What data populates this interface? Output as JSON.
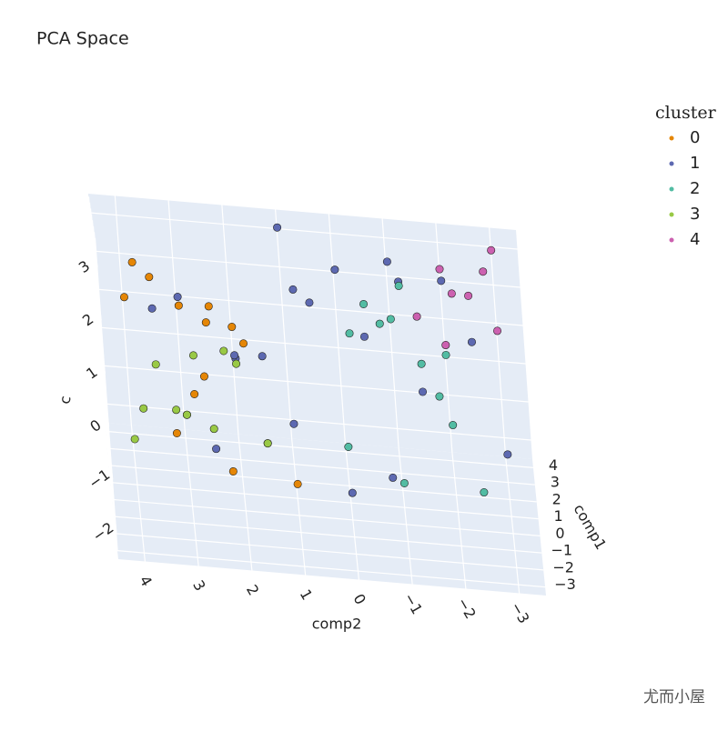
{
  "chart_data": {
    "type": "scatter3d",
    "title": "PCA Space",
    "legend_title": "cluster",
    "x_label": "comp1",
    "y_label": "comp2",
    "z_label": "c",
    "xlim": [
      -3.5,
      4.5
    ],
    "ylim": [
      -3.5,
      4.5
    ],
    "zlim": [
      -2.5,
      3.5
    ],
    "xticks": [
      {
        "value": -3,
        "label": "−3"
      },
      {
        "value": -2,
        "label": "−2"
      },
      {
        "value": -1,
        "label": "−1"
      },
      0,
      1,
      2,
      3,
      4
    ],
    "yticks": [
      {
        "value": -3,
        "label": "−3"
      },
      {
        "value": -2,
        "label": "−2"
      },
      {
        "value": -1,
        "label": "−1"
      },
      0,
      1,
      2,
      3,
      4
    ],
    "zticks": [
      {
        "value": -2,
        "label": "−2"
      },
      {
        "value": -1,
        "label": "−1"
      },
      0,
      1,
      2,
      3
    ],
    "grid": true,
    "series": [
      {
        "name": "0",
        "color": "#e58606",
        "x": [
          -1,
          0,
          1,
          2,
          -2,
          0.5,
          1.5,
          -0.5,
          2.5,
          -1.5,
          0,
          1,
          3,
          -1,
          0.5
        ],
        "y": [
          3,
          2.5,
          3.5,
          2,
          3,
          4,
          2.8,
          3.2,
          1.8,
          2.2,
          1.5,
          3.8,
          2.4,
          1,
          2.6
        ],
        "z": [
          2,
          1.5,
          2.2,
          1,
          0,
          1.8,
          -0.5,
          -0.8,
          0.5,
          -1.2,
          -1,
          2.5,
          1.2,
          -1.5,
          0.2
        ]
      },
      {
        "name": "1",
        "color": "#5d69b1",
        "x": [
          -3,
          -2,
          -1,
          0,
          1,
          2,
          3,
          4,
          -2.5,
          -1.5,
          0.5,
          1.5,
          2.5,
          3.5,
          -0.5,
          0,
          1,
          2,
          -1,
          3
        ],
        "y": [
          0,
          1,
          2,
          3,
          -1,
          -2,
          0.5,
          -0.5,
          2.5,
          1.5,
          0,
          -1.5,
          -2.5,
          1,
          3.5,
          -3,
          2,
          0.8,
          -0.8,
          -1.2
        ],
        "z": [
          -1,
          0,
          1,
          2,
          3,
          2.5,
          1.5,
          0.5,
          -0.5,
          1.2,
          2.8,
          0,
          1,
          3.2,
          1.8,
          -0.8,
          0.6,
          2,
          -1.2,
          2.2
        ]
      },
      {
        "name": "2",
        "color": "#52bca3",
        "x": [
          -2,
          -1,
          0,
          1,
          2,
          3,
          -1.5,
          0.5,
          1.5,
          2.5,
          -0.5,
          3.5
        ],
        "y": [
          -1,
          -2,
          -1.5,
          -0.5,
          -1,
          -2,
          0,
          -1.8,
          -0.2,
          -1.2,
          -2.5,
          -0.8
        ],
        "z": [
          -1,
          0,
          1,
          2,
          1.5,
          0.5,
          -0.5,
          0.2,
          1.2,
          2.2,
          -1.5,
          1
        ]
      },
      {
        "name": "3",
        "color": "#99c945",
        "x": [
          -2,
          -1,
          0,
          -1.5,
          -0.5,
          -2.5,
          0.5,
          -1,
          -2,
          0
        ],
        "y": [
          3,
          2.5,
          3.5,
          2,
          4,
          3.2,
          2.2,
          3.8,
          2.8,
          1.5
        ],
        "z": [
          0,
          -0.5,
          0.5,
          1,
          -1,
          0.2,
          0.8,
          -0.2,
          1.2,
          -1
        ]
      },
      {
        "name": "4",
        "color": "#cc61b0",
        "x": [
          2,
          3,
          4,
          2.5,
          3.5,
          3,
          4,
          2
        ],
        "y": [
          -2,
          -2.5,
          -3,
          -1.5,
          -2,
          -3,
          -2.2,
          -2.8
        ],
        "z": [
          1,
          2,
          3,
          1.5,
          2.5,
          1.2,
          1.8,
          2.8
        ]
      }
    ],
    "watermark": "尤而小屋"
  }
}
